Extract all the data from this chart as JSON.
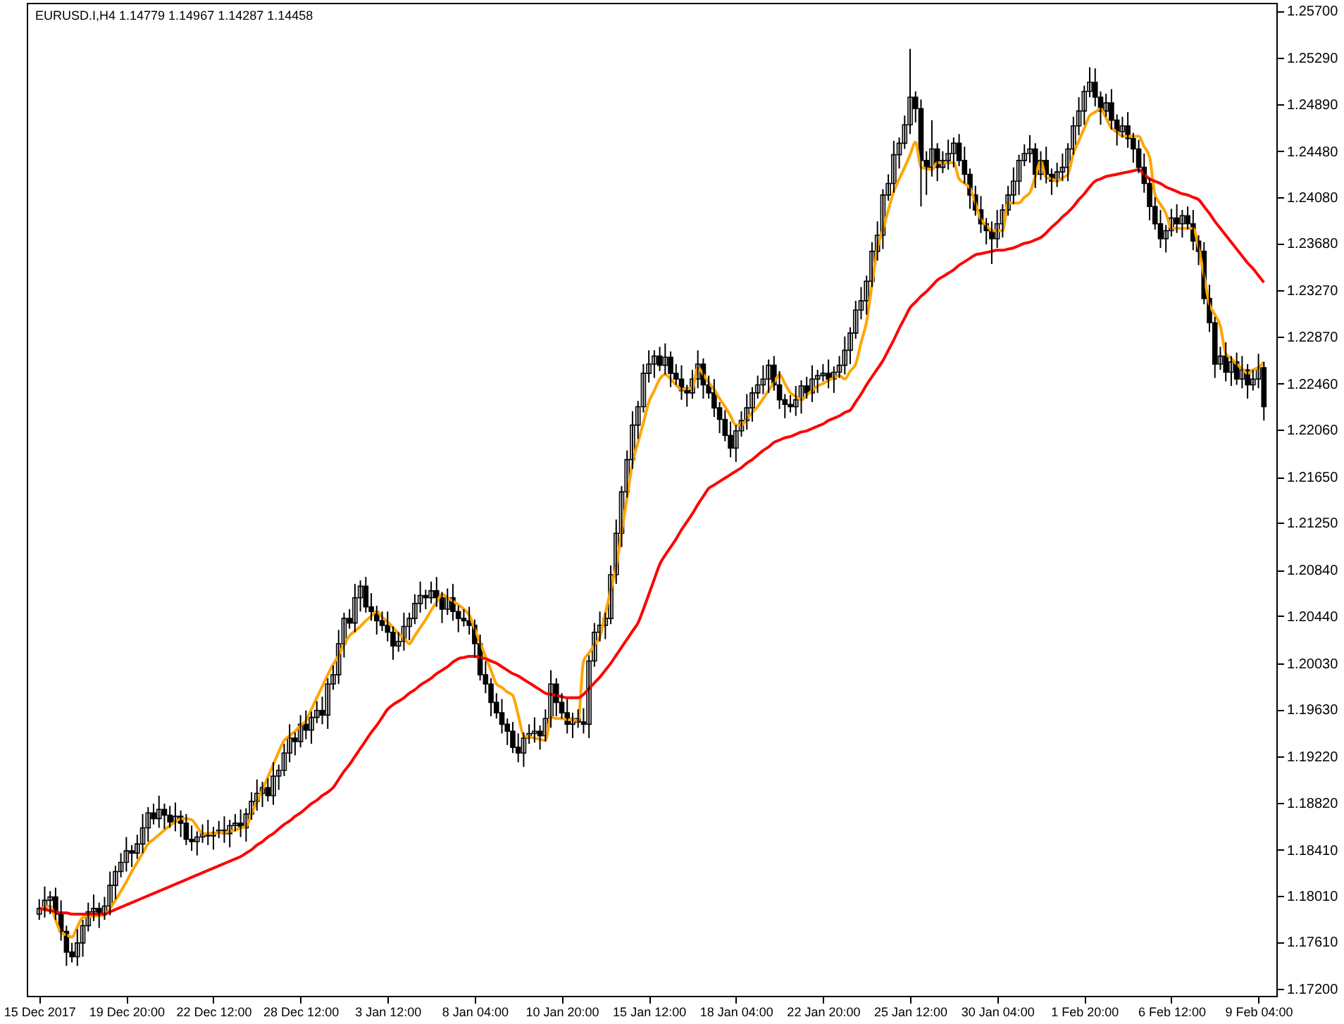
{
  "chart_data": {
    "type": "candlestick",
    "title": "EURUSD.I,H4  1.14779 1.14967 1.14287 1.14458",
    "categories": [
      "15 Dec 2017",
      null,
      null,
      null,
      null,
      null,
      null,
      null,
      null,
      null,
      null,
      null,
      null,
      null,
      null,
      null,
      "19 Dec 20:00",
      null,
      null,
      null,
      null,
      null,
      null,
      null,
      null,
      null,
      null,
      null,
      null,
      null,
      null,
      null,
      "22 Dec 12:00",
      null,
      null,
      null,
      null,
      null,
      null,
      null,
      null,
      null,
      null,
      null,
      null,
      null,
      null,
      null,
      "28 Dec 12:00",
      null,
      null,
      null,
      null,
      null,
      null,
      null,
      null,
      null,
      null,
      null,
      null,
      null,
      null,
      null,
      "3 Jan 12:00",
      null,
      null,
      null,
      null,
      null,
      null,
      null,
      null,
      null,
      null,
      null,
      null,
      null,
      null,
      null,
      "8 Jan 04:00",
      null,
      null,
      null,
      null,
      null,
      null,
      null,
      null,
      null,
      null,
      null,
      null,
      null,
      null,
      null,
      "10 Jan 20:00",
      null,
      null,
      null,
      null,
      null,
      null,
      null,
      null,
      null,
      null,
      null,
      null,
      null,
      null,
      null,
      "15 Jan 12:00",
      null,
      null,
      null,
      null,
      null,
      null,
      null,
      null,
      null,
      null,
      null,
      null,
      null,
      null,
      null,
      "18 Jan 04:00",
      null,
      null,
      null,
      null,
      null,
      null,
      null,
      null,
      null,
      null,
      null,
      null,
      null,
      null,
      null,
      "22 Jan 20:00",
      null,
      null,
      null,
      null,
      null,
      null,
      null,
      null,
      null,
      null,
      null,
      null,
      null,
      null,
      null,
      "25 Jan 12:00",
      null,
      null,
      null,
      null,
      null,
      null,
      null,
      null,
      null,
      null,
      null,
      null,
      null,
      null,
      null,
      "30 Jan 04:00",
      null,
      null,
      null,
      null,
      null,
      null,
      null,
      null,
      null,
      null,
      null,
      null,
      null,
      null,
      null,
      "1 Feb 20:00",
      null,
      null,
      null,
      null,
      null,
      null,
      null,
      null,
      null,
      null,
      null,
      null,
      null,
      null,
      null,
      "6 Feb 12:00",
      null,
      null,
      null,
      null,
      null,
      null,
      null,
      null,
      null,
      null,
      null,
      null,
      null,
      null,
      null,
      "9 Feb 04:00",
      null
    ],
    "ohlc": [
      [
        1.1785,
        1.1798,
        1.178,
        1.179
      ],
      [
        1.179,
        1.1809,
        1.1782,
        1.1797
      ],
      [
        1.1797,
        1.1805,
        1.1785,
        1.18
      ],
      [
        1.18,
        1.1808,
        1.178,
        1.1785
      ],
      [
        1.1785,
        1.1797,
        1.1762,
        1.177
      ],
      [
        1.177,
        1.1775,
        1.174,
        1.1752
      ],
      [
        1.1752,
        1.176,
        1.1743,
        1.1748
      ],
      [
        1.1748,
        1.1772,
        1.174,
        1.176
      ],
      [
        1.176,
        1.178,
        1.1748,
        1.1775
      ],
      [
        1.1775,
        1.1795,
        1.177,
        1.1787
      ],
      [
        1.1787,
        1.1802,
        1.1779,
        1.179
      ],
      [
        1.179,
        1.1795,
        1.1773,
        1.1785
      ],
      [
        1.1785,
        1.18,
        1.178,
        1.1792
      ],
      [
        1.1792,
        1.1822,
        1.1784,
        1.181
      ],
      [
        1.181,
        1.1827,
        1.1798,
        1.1822
      ],
      [
        1.1822,
        1.1838,
        1.1817,
        1.183
      ],
      [
        1.183,
        1.1852,
        1.1822,
        1.184
      ],
      [
        1.184,
        1.1845,
        1.1826,
        1.1838
      ],
      [
        1.1838,
        1.1854,
        1.1833,
        1.1846
      ],
      [
        1.1846,
        1.1872,
        1.1838,
        1.186
      ],
      [
        1.186,
        1.1878,
        1.1848,
        1.1873
      ],
      [
        1.1873,
        1.1881,
        1.1863,
        1.1868
      ],
      [
        1.1868,
        1.1888,
        1.186,
        1.1876
      ],
      [
        1.1876,
        1.1881,
        1.1859,
        1.1871
      ],
      [
        1.1871,
        1.1879,
        1.186,
        1.1865
      ],
      [
        1.1865,
        1.1882,
        1.1857,
        1.187
      ],
      [
        1.187,
        1.1875,
        1.1852,
        1.1864
      ],
      [
        1.1864,
        1.1872,
        1.1845,
        1.185
      ],
      [
        1.185,
        1.1862,
        1.184,
        1.1848
      ],
      [
        1.1848,
        1.1857,
        1.1836,
        1.1852
      ],
      [
        1.1852,
        1.1863,
        1.1847,
        1.1855
      ],
      [
        1.1855,
        1.1867,
        1.1845,
        1.1853
      ],
      [
        1.1853,
        1.1861,
        1.1841,
        1.1856
      ],
      [
        1.1856,
        1.1866,
        1.1851,
        1.1858
      ],
      [
        1.1858,
        1.187,
        1.1847,
        1.1855
      ],
      [
        1.1855,
        1.1867,
        1.1843,
        1.1862
      ],
      [
        1.1862,
        1.1872,
        1.1857,
        1.1864
      ],
      [
        1.1864,
        1.1876,
        1.1852,
        1.186
      ],
      [
        1.186,
        1.1877,
        1.1848,
        1.1872
      ],
      [
        1.1872,
        1.1891,
        1.1867,
        1.1883
      ],
      [
        1.1883,
        1.1902,
        1.1875,
        1.189
      ],
      [
        1.189,
        1.19,
        1.1878,
        1.1895
      ],
      [
        1.1895,
        1.1903,
        1.1883,
        1.1888
      ],
      [
        1.1888,
        1.1917,
        1.188,
        1.1905
      ],
      [
        1.1905,
        1.1915,
        1.1893,
        1.191
      ],
      [
        1.191,
        1.1933,
        1.1905,
        1.1925
      ],
      [
        1.1925,
        1.195,
        1.1917,
        1.1938
      ],
      [
        1.1938,
        1.1943,
        1.1923,
        1.1935
      ],
      [
        1.1935,
        1.1958,
        1.193,
        1.195
      ],
      [
        1.195,
        1.1962,
        1.1937,
        1.1945
      ],
      [
        1.1945,
        1.1961,
        1.1933,
        1.1956
      ],
      [
        1.1956,
        1.197,
        1.1951,
        1.1962
      ],
      [
        1.1962,
        1.1974,
        1.195,
        1.1958
      ],
      [
        1.1958,
        1.199,
        1.1946,
        1.1985
      ],
      [
        1.1985,
        1.2001,
        1.198,
        1.1993
      ],
      [
        1.1993,
        1.2032,
        1.1985,
        1.202
      ],
      [
        1.202,
        1.2047,
        1.2008,
        1.2042
      ],
      [
        1.2042,
        1.205,
        1.2033,
        1.2038
      ],
      [
        1.2038,
        1.2072,
        1.203,
        1.206
      ],
      [
        1.206,
        1.2075,
        1.2048,
        1.207
      ],
      [
        1.207,
        1.2078,
        1.2047,
        1.2052
      ],
      [
        1.2052,
        1.2064,
        1.204,
        1.2048
      ],
      [
        1.2048,
        1.2053,
        1.2028,
        1.204
      ],
      [
        1.204,
        1.2048,
        1.2031,
        1.2036
      ],
      [
        1.2036,
        1.2048,
        1.2022,
        1.203
      ],
      [
        1.203,
        1.2035,
        1.2006,
        1.2018
      ],
      [
        1.2018,
        1.203,
        1.2013,
        1.2022
      ],
      [
        1.2022,
        1.2047,
        1.2014,
        1.2035
      ],
      [
        1.2035,
        1.2047,
        1.2023,
        1.2042
      ],
      [
        1.2042,
        1.2063,
        1.2037,
        1.2055
      ],
      [
        1.2055,
        1.2074,
        1.2047,
        1.2062
      ],
      [
        1.2062,
        1.2067,
        1.205,
        1.206
      ],
      [
        1.206,
        1.2074,
        1.2055,
        1.2066
      ],
      [
        1.2066,
        1.2078,
        1.2052,
        1.206
      ],
      [
        1.206,
        1.2065,
        1.2038,
        1.205
      ],
      [
        1.205,
        1.2068,
        1.2045,
        1.206
      ],
      [
        1.206,
        1.2072,
        1.204,
        1.2048
      ],
      [
        1.2048,
        1.2053,
        1.203,
        1.2042
      ],
      [
        1.2042,
        1.205,
        1.2035,
        1.204
      ],
      [
        1.204,
        1.2052,
        1.2028,
        1.2036
      ],
      [
        1.2036,
        1.2041,
        1.2008,
        1.202
      ],
      [
        1.202,
        1.2028,
        1.1988,
        1.1993
      ],
      [
        1.1993,
        1.2005,
        1.1977,
        1.1985
      ],
      [
        1.1985,
        1.199,
        1.1957,
        1.1969
      ],
      [
        1.1969,
        1.1977,
        1.1955,
        1.196
      ],
      [
        1.196,
        1.1972,
        1.1942,
        1.195
      ],
      [
        1.195,
        1.1955,
        1.1932,
        1.1944
      ],
      [
        1.1944,
        1.1952,
        1.1925,
        1.193
      ],
      [
        1.193,
        1.1942,
        1.1917,
        1.1925
      ],
      [
        1.1925,
        1.1943,
        1.1913,
        1.1938
      ],
      [
        1.1938,
        1.195,
        1.1933,
        1.1942
      ],
      [
        1.1942,
        1.1956,
        1.1934,
        1.1944
      ],
      [
        1.1944,
        1.1949,
        1.1928,
        1.194
      ],
      [
        1.194,
        1.1963,
        1.1935,
        1.1955
      ],
      [
        1.1955,
        1.1997,
        1.1947,
        1.1985
      ],
      [
        1.1985,
        1.199,
        1.1957,
        1.1969
      ],
      [
        1.1969,
        1.1977,
        1.1955,
        1.196
      ],
      [
        1.196,
        1.1972,
        1.1942,
        1.195
      ],
      [
        1.195,
        1.196,
        1.1938,
        1.1955
      ],
      [
        1.1955,
        1.1963,
        1.1947,
        1.1952
      ],
      [
        1.1952,
        1.1964,
        1.1942,
        1.195
      ],
      [
        1.195,
        1.201,
        1.1938,
        1.2005
      ],
      [
        1.2005,
        1.2038,
        1.2,
        1.203
      ],
      [
        1.203,
        1.2048,
        1.2022,
        1.2036
      ],
      [
        1.2036,
        1.2047,
        1.2024,
        1.2042
      ],
      [
        1.2042,
        1.2088,
        1.2037,
        1.208
      ],
      [
        1.208,
        1.2128,
        1.2072,
        1.2116
      ],
      [
        1.2116,
        1.2157,
        1.2104,
        1.2152
      ],
      [
        1.2152,
        1.2188,
        1.2147,
        1.218
      ],
      [
        1.218,
        1.2222,
        1.2172,
        1.221
      ],
      [
        1.221,
        1.2231,
        1.2198,
        1.2226
      ],
      [
        1.2226,
        1.2263,
        1.2221,
        1.2255
      ],
      [
        1.2255,
        1.2275,
        1.2247,
        1.2263
      ],
      [
        1.2263,
        1.2275,
        1.2251,
        1.227
      ],
      [
        1.227,
        1.2278,
        1.2257,
        1.2262
      ],
      [
        1.2262,
        1.2281,
        1.2254,
        1.2269
      ],
      [
        1.2269,
        1.2274,
        1.2243,
        1.2255
      ],
      [
        1.2255,
        1.2263,
        1.2245,
        1.225
      ],
      [
        1.225,
        1.2262,
        1.2232,
        1.224
      ],
      [
        1.224,
        1.2245,
        1.2226,
        1.2238
      ],
      [
        1.2238,
        1.2258,
        1.2233,
        1.225
      ],
      [
        1.225,
        1.2275,
        1.2242,
        1.2263
      ],
      [
        1.2263,
        1.2268,
        1.2233,
        1.2245
      ],
      [
        1.2245,
        1.2253,
        1.2233,
        1.2238
      ],
      [
        1.2238,
        1.225,
        1.2217,
        1.2225
      ],
      [
        1.2225,
        1.223,
        1.2203,
        1.2215
      ],
      [
        1.2215,
        1.2223,
        1.2196,
        1.2201
      ],
      [
        1.2201,
        1.2213,
        1.2182,
        1.219
      ],
      [
        1.219,
        1.221,
        1.2178,
        1.2205
      ],
      [
        1.2205,
        1.2222,
        1.22,
        1.2214
      ],
      [
        1.2214,
        1.2237,
        1.2206,
        1.2225
      ],
      [
        1.2225,
        1.2243,
        1.2213,
        1.2238
      ],
      [
        1.2238,
        1.2253,
        1.2233,
        1.2245
      ],
      [
        1.2245,
        1.2262,
        1.2237,
        1.225
      ],
      [
        1.225,
        1.2267,
        1.2238,
        1.2262
      ],
      [
        1.2262,
        1.227,
        1.224,
        1.2245
      ],
      [
        1.2245,
        1.2257,
        1.2224,
        1.2232
      ],
      [
        1.2232,
        1.2237,
        1.2216,
        1.2228
      ],
      [
        1.2228,
        1.2236,
        1.2221,
        1.2226
      ],
      [
        1.2226,
        1.2244,
        1.2218,
        1.2232
      ],
      [
        1.2232,
        1.2249,
        1.222,
        1.2244
      ],
      [
        1.2244,
        1.2252,
        1.2233,
        1.2238
      ],
      [
        1.2238,
        1.2262,
        1.223,
        1.225
      ],
      [
        1.225,
        1.2258,
        1.2238,
        1.2253
      ],
      [
        1.2253,
        1.2263,
        1.2248,
        1.2255
      ],
      [
        1.2255,
        1.2267,
        1.2242,
        1.225
      ],
      [
        1.225,
        1.2261,
        1.2238,
        1.2256
      ],
      [
        1.2256,
        1.227,
        1.2251,
        1.2262
      ],
      [
        1.2262,
        1.2287,
        1.2254,
        1.2275
      ],
      [
        1.2275,
        1.2295,
        1.2263,
        1.229
      ],
      [
        1.229,
        1.2318,
        1.2285,
        1.231
      ],
      [
        1.231,
        1.233,
        1.2302,
        1.2318
      ],
      [
        1.2318,
        1.234,
        1.2306,
        1.2335
      ],
      [
        1.2335,
        1.2369,
        1.233,
        1.2361
      ],
      [
        1.2361,
        1.2387,
        1.2353,
        1.2375
      ],
      [
        1.2375,
        1.2415,
        1.2363,
        1.241
      ],
      [
        1.241,
        1.2428,
        1.2405,
        1.242
      ],
      [
        1.242,
        1.2457,
        1.2412,
        1.2445
      ],
      [
        1.2445,
        1.246,
        1.2433,
        1.2455
      ],
      [
        1.2455,
        1.2479,
        1.245,
        1.2471
      ],
      [
        1.2471,
        1.2537,
        1.2463,
        1.2495
      ],
      [
        1.2495,
        1.25,
        1.2473,
        1.2485
      ],
      [
        1.2485,
        1.2493,
        1.24,
        1.244
      ],
      [
        1.244,
        1.2448,
        1.241,
        1.2434
      ],
      [
        1.2434,
        1.2475,
        1.2426,
        1.245
      ],
      [
        1.245,
        1.2455,
        1.2422,
        1.2434
      ],
      [
        1.2434,
        1.2448,
        1.2429,
        1.244
      ],
      [
        1.244,
        1.2458,
        1.2432,
        1.2446
      ],
      [
        1.2446,
        1.246,
        1.2434,
        1.2455
      ],
      [
        1.2455,
        1.2463,
        1.2435,
        1.244
      ],
      [
        1.244,
        1.2452,
        1.242,
        1.2428
      ],
      [
        1.2428,
        1.2433,
        1.2398,
        1.241
      ],
      [
        1.241,
        1.2418,
        1.2392,
        1.2397
      ],
      [
        1.2397,
        1.2409,
        1.2377,
        1.2385
      ],
      [
        1.2385,
        1.239,
        1.2367,
        1.2379
      ],
      [
        1.2379,
        1.2387,
        1.235,
        1.2372
      ],
      [
        1.2372,
        1.2397,
        1.2364,
        1.2385
      ],
      [
        1.2385,
        1.2402,
        1.2373,
        1.2397
      ],
      [
        1.2397,
        1.2418,
        1.2392,
        1.241
      ],
      [
        1.241,
        1.2434,
        1.2402,
        1.2422
      ],
      [
        1.2422,
        1.2445,
        1.241,
        1.244
      ],
      [
        1.244,
        1.2454,
        1.2435,
        1.2446
      ],
      [
        1.2446,
        1.2462,
        1.2438,
        1.245
      ],
      [
        1.245,
        1.2455,
        1.2416,
        1.2428
      ],
      [
        1.2428,
        1.2448,
        1.2423,
        1.244
      ],
      [
        1.244,
        1.2452,
        1.242,
        1.2428
      ],
      [
        1.2428,
        1.2433,
        1.241,
        1.2422
      ],
      [
        1.2422,
        1.2438,
        1.2417,
        1.243
      ],
      [
        1.243,
        1.2446,
        1.2422,
        1.2434
      ],
      [
        1.2434,
        1.2455,
        1.2422,
        1.245
      ],
      [
        1.245,
        1.2478,
        1.2445,
        1.247
      ],
      [
        1.247,
        1.2495,
        1.2462,
        1.2483
      ],
      [
        1.2483,
        1.2505,
        1.2471,
        1.25
      ],
      [
        1.25,
        1.2521,
        1.2495,
        1.2508
      ],
      [
        1.2508,
        1.252,
        1.2487,
        1.2495
      ],
      [
        1.2495,
        1.25,
        1.2471,
        1.2483
      ],
      [
        1.2483,
        1.2498,
        1.2478,
        1.249
      ],
      [
        1.249,
        1.2502,
        1.2467,
        1.2475
      ],
      [
        1.2475,
        1.248,
        1.2453,
        1.2465
      ],
      [
        1.2465,
        1.2478,
        1.246,
        1.247
      ],
      [
        1.247,
        1.2482,
        1.2451,
        1.2459
      ],
      [
        1.2459,
        1.2464,
        1.2438,
        1.245
      ],
      [
        1.245,
        1.2458,
        1.2429,
        1.2434
      ],
      [
        1.2434,
        1.2446,
        1.2412,
        1.242
      ],
      [
        1.242,
        1.2425,
        1.2388,
        1.24
      ],
      [
        1.24,
        1.2408,
        1.238,
        1.2385
      ],
      [
        1.2385,
        1.2397,
        1.2364,
        1.2372
      ],
      [
        1.2372,
        1.2384,
        1.236,
        1.2379
      ],
      [
        1.2379,
        1.2398,
        1.2374,
        1.239
      ],
      [
        1.239,
        1.2402,
        1.2377,
        1.2385
      ],
      [
        1.2385,
        1.2397,
        1.2373,
        1.2392
      ],
      [
        1.2392,
        1.24,
        1.238,
        1.2385
      ],
      [
        1.2385,
        1.2397,
        1.2362,
        1.237
      ],
      [
        1.237,
        1.2375,
        1.2349,
        1.2361
      ],
      [
        1.2361,
        1.2369,
        1.2315,
        1.232
      ],
      [
        1.232,
        1.2332,
        1.2291,
        1.2299
      ],
      [
        1.2299,
        1.2304,
        1.2251,
        1.2263
      ],
      [
        1.2263,
        1.2278,
        1.2258,
        1.227
      ],
      [
        1.227,
        1.2282,
        1.2248,
        1.2256
      ],
      [
        1.2256,
        1.227,
        1.2244,
        1.2265
      ],
      [
        1.2265,
        1.2273,
        1.2245,
        1.225
      ],
      [
        1.225,
        1.227,
        1.2242,
        1.2258
      ],
      [
        1.2258,
        1.2263,
        1.2233,
        1.2245
      ],
      [
        1.2245,
        1.2258,
        1.224,
        1.225
      ],
      [
        1.225,
        1.2272,
        1.2242,
        1.226
      ],
      [
        1.226,
        1.2265,
        1.2214,
        1.2226
      ]
    ],
    "series": [
      {
        "type": "line",
        "color": "#ffa500",
        "values": [
          1.1789,
          1.1791,
          1.1792,
          1.178,
          1.1769,
          1.1767,
          1.1765,
          1.1774,
          1.1782,
          1.1783,
          1.1783,
          1.1784,
          1.1784,
          1.179,
          1.1797,
          1.1805,
          1.1813,
          1.1822,
          1.183,
          1.1838,
          1.1846,
          1.185,
          1.1854,
          1.1858,
          1.1862,
          1.1865,
          1.1868,
          1.1868,
          1.1867,
          1.1861,
          1.1855,
          1.1855,
          1.1855,
          1.1856,
          1.1856,
          1.1857,
          1.1858,
          1.186,
          1.1861,
          1.1872,
          1.1883,
          1.1893,
          1.1904,
          1.1915,
          1.1926,
          1.1936,
          1.194,
          1.1944,
          1.1949,
          1.1953,
          1.1963,
          1.1973,
          1.1983,
          1.1993,
          1.2002,
          1.201,
          1.2019,
          1.2027,
          1.2031,
          1.2035,
          1.204,
          1.2044,
          1.2048,
          1.2043,
          1.2039,
          1.2034,
          1.2029,
          1.2025,
          1.202,
          1.2027,
          1.2034,
          1.2041,
          1.2049,
          1.2056,
          1.2063,
          1.206,
          1.2057,
          1.2054,
          1.205,
          1.2045,
          1.2033,
          1.2021,
          1.2009,
          1.1997,
          1.1985,
          1.1982,
          1.1978,
          1.1975,
          1.1958,
          1.194,
          1.1939,
          1.1938,
          1.1937,
          1.1936,
          1.1956,
          1.1955,
          1.1955,
          1.1954,
          1.1954,
          1.1953,
          1.2005,
          1.2012,
          1.2019,
          1.2026,
          1.2046,
          1.2067,
          1.2087,
          1.2117,
          1.2147,
          1.2177,
          1.2195,
          1.2212,
          1.223,
          1.224,
          1.225,
          1.2254,
          1.225,
          1.2245,
          1.2241,
          1.2242,
          1.2242,
          1.226,
          1.2254,
          1.2247,
          1.2241,
          1.2233,
          1.2226,
          1.2218,
          1.221,
          1.221,
          1.2215,
          1.2221,
          1.2226,
          1.2233,
          1.224,
          1.2247,
          1.2254,
          1.2246,
          1.2238,
          1.2235,
          1.2232,
          1.2236,
          1.224,
          1.2244,
          1.2246,
          1.2249,
          1.2251,
          1.2253,
          1.225,
          1.2257,
          1.2263,
          1.2282,
          1.23,
          1.2332,
          1.2364,
          1.238,
          1.2397,
          1.2413,
          1.2424,
          1.2434,
          1.2445,
          1.2456,
          1.2434,
          1.2433,
          1.2432,
          1.2438,
          1.2438,
          1.2438,
          1.2438,
          1.2424,
          1.242,
          1.2416,
          1.2403,
          1.2389,
          1.2384,
          1.2379,
          1.2379,
          1.2379,
          1.2403,
          1.2403,
          1.2403,
          1.2408,
          1.2412,
          1.2426,
          1.2439,
          1.2425,
          1.2424,
          1.2422,
          1.2425,
          1.2428,
          1.2446,
          1.2457,
          1.2468,
          1.2479,
          1.2482,
          1.2485,
          1.2477,
          1.2468,
          1.2465,
          1.2461,
          1.2461,
          1.2461,
          1.2461,
          1.2452,
          1.2443,
          1.241,
          1.2402,
          1.2394,
          1.2381,
          1.2381,
          1.2381,
          1.2381,
          1.2381,
          1.2364,
          1.234,
          1.2315,
          1.2306,
          1.2296,
          1.2272,
          1.2268,
          1.2263,
          1.2259,
          1.2255,
          1.2258,
          1.226,
          1.2265
        ]
      },
      {
        "type": "line",
        "color": "#ff0000",
        "values": [
          1.179,
          1.1789,
          1.1788,
          1.1787,
          1.1786,
          1.1786,
          1.1785,
          1.1785,
          1.1785,
          1.1785,
          1.1785,
          1.1785,
          1.1785,
          1.1787,
          1.1789,
          1.1791,
          1.1793,
          1.1795,
          1.1797,
          1.1799,
          1.1801,
          1.1803,
          1.1805,
          1.1807,
          1.1809,
          1.1811,
          1.1813,
          1.1815,
          1.1817,
          1.1819,
          1.1821,
          1.1823,
          1.1825,
          1.1827,
          1.1829,
          1.1831,
          1.1833,
          1.1835,
          1.1838,
          1.1841,
          1.1845,
          1.1848,
          1.1852,
          1.1855,
          1.1859,
          1.1863,
          1.1866,
          1.187,
          1.1873,
          1.1877,
          1.1881,
          1.1884,
          1.1888,
          1.1891,
          1.1895,
          1.1902,
          1.1909,
          1.1915,
          1.1922,
          1.1929,
          1.1936,
          1.1943,
          1.1949,
          1.1956,
          1.1963,
          1.1967,
          1.197,
          1.1973,
          1.1977,
          1.198,
          1.1984,
          1.1987,
          1.199,
          1.1994,
          1.1997,
          1.2,
          1.2004,
          1.2007,
          1.2008,
          1.2009,
          1.2009,
          1.2008,
          1.2007,
          1.2005,
          1.2003,
          1.2,
          1.1997,
          1.1994,
          1.1992,
          1.1989,
          1.1986,
          1.1983,
          1.198,
          1.1977,
          1.1976,
          1.1975,
          1.1974,
          1.1973,
          1.1973,
          1.1973,
          1.1976,
          1.1981,
          1.1986,
          1.1991,
          1.1997,
          1.2003,
          1.201,
          1.2017,
          1.2024,
          1.2031,
          1.2038,
          1.205,
          1.2063,
          1.2076,
          1.2089,
          1.2097,
          1.2104,
          1.2111,
          1.2119,
          1.2126,
          1.2133,
          1.2141,
          1.2148,
          1.2155,
          1.2158,
          1.2161,
          1.2164,
          1.2167,
          1.217,
          1.2173,
          1.2177,
          1.218,
          1.2184,
          1.2188,
          1.2191,
          1.2195,
          1.2197,
          1.2199,
          1.22,
          1.2202,
          1.2204,
          1.2205,
          1.2207,
          1.2209,
          1.2211,
          1.2214,
          1.2216,
          1.2218,
          1.2221,
          1.2223,
          1.223,
          1.2237,
          1.2245,
          1.2252,
          1.2259,
          1.2266,
          1.2275,
          1.2284,
          1.2294,
          1.2303,
          1.2312,
          1.2317,
          1.2322,
          1.2326,
          1.2331,
          1.2336,
          1.2339,
          1.2342,
          1.2345,
          1.2349,
          1.2352,
          1.2355,
          1.2358,
          1.2359,
          1.236,
          1.2361,
          1.2362,
          1.2362,
          1.2363,
          1.2364,
          1.2366,
          1.2368,
          1.2369,
          1.2371,
          1.2373,
          1.2377,
          1.2382,
          1.2386,
          1.2391,
          1.2395,
          1.24,
          1.2406,
          1.2411,
          1.2417,
          1.2422,
          1.2424,
          1.2426,
          1.2427,
          1.2428,
          1.2429,
          1.243,
          1.2431,
          1.2432,
          1.2428,
          1.2424,
          1.2422,
          1.242,
          1.2417,
          1.2415,
          1.2413,
          1.2411,
          1.241,
          1.2408,
          1.2406,
          1.24,
          1.2394,
          1.2387,
          1.2381,
          1.2375,
          1.2369,
          1.2363,
          1.2357,
          1.2351,
          1.2346,
          1.234,
          1.2334
        ]
      }
    ],
    "ylim": [
      1.1714,
      1.2577
    ],
    "yticks": [
      {
        "value": 1.172,
        "label": "1.17200"
      },
      {
        "value": 1.1761,
        "label": "1.17610"
      },
      {
        "value": 1.1801,
        "label": "1.18010"
      },
      {
        "value": 1.1841,
        "label": "1.18410"
      },
      {
        "value": 1.1882,
        "label": "1.18820"
      },
      {
        "value": 1.1922,
        "label": "1.19220"
      },
      {
        "value": 1.1963,
        "label": "1.19630"
      },
      {
        "value": 1.2003,
        "label": "1.20030"
      },
      {
        "value": 1.2044,
        "label": "1.20440"
      },
      {
        "value": 1.2084,
        "label": "1.20840"
      },
      {
        "value": 1.2125,
        "label": "1.21250"
      },
      {
        "value": 1.2165,
        "label": "1.21650"
      },
      {
        "value": 1.2206,
        "label": "1.22060"
      },
      {
        "value": 1.2246,
        "label": "1.22460"
      },
      {
        "value": 1.2287,
        "label": "1.22870"
      },
      {
        "value": 1.2327,
        "label": "1.23270"
      },
      {
        "value": 1.2368,
        "label": "1.23680"
      },
      {
        "value": 1.2408,
        "label": "1.24080"
      },
      {
        "value": 1.2448,
        "label": "1.24480"
      },
      {
        "value": 1.2489,
        "label": "1.24890"
      },
      {
        "value": 1.2529,
        "label": "1.25290"
      },
      {
        "value": 1.257,
        "label": "1.25700"
      }
    ]
  }
}
